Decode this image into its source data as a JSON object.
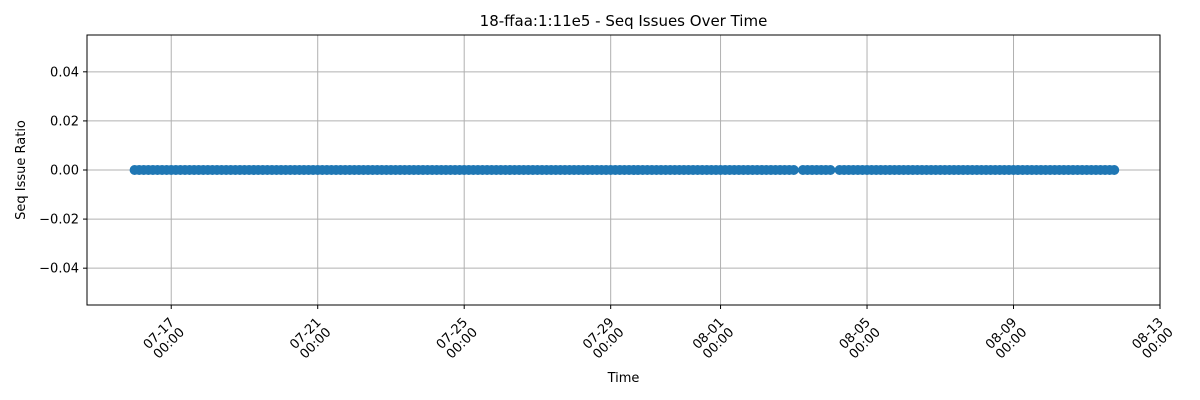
{
  "chart_data": {
    "type": "scatter",
    "title": "18-ffaa:1:11e5 - Seq Issues Over Time",
    "xlabel": "Time",
    "ylabel": "Seq Issue Ratio",
    "xlim": [
      "2024-07-14T16:48",
      "2024-08-13T00:00"
    ],
    "ylim": [
      -0.055,
      0.055
    ],
    "x_ticks": [
      {
        "date": "2024-07-17T00:00",
        "line1": "07-17",
        "line2": "00:00"
      },
      {
        "date": "2024-07-21T00:00",
        "line1": "07-21",
        "line2": "00:00"
      },
      {
        "date": "2024-07-25T00:00",
        "line1": "07-25",
        "line2": "00:00"
      },
      {
        "date": "2024-07-29T00:00",
        "line1": "07-29",
        "line2": "00:00"
      },
      {
        "date": "2024-08-01T00:00",
        "line1": "08-01",
        "line2": "00:00"
      },
      {
        "date": "2024-08-05T00:00",
        "line1": "08-05",
        "line2": "00:00"
      },
      {
        "date": "2024-08-09T00:00",
        "line1": "08-09",
        "line2": "00:00"
      },
      {
        "date": "2024-08-13T00:00",
        "line1": "08-13",
        "line2": "00:00"
      }
    ],
    "y_ticks": [
      {
        "value": 0.04,
        "label": "0.04"
      },
      {
        "value": 0.02,
        "label": "0.02"
      },
      {
        "value": 0.0,
        "label": "0.00"
      },
      {
        "value": -0.02,
        "label": "−0.02"
      },
      {
        "value": -0.04,
        "label": "−0.04"
      }
    ],
    "grid": true,
    "series": [
      {
        "color": "#1f77b4",
        "x_range": [
          "2024-07-16T00:00",
          "2024-08-11T18:00"
        ],
        "y_constant": 0.0,
        "sampling_hours": 3,
        "gaps": [
          [
            "2024-08-03T02:00",
            "2024-08-03T04:00"
          ],
          [
            "2024-08-04T00:00",
            "2024-08-04T05:00"
          ],
          [
            "2024-08-05T16:00",
            "2024-08-05T18:00"
          ]
        ]
      }
    ]
  }
}
